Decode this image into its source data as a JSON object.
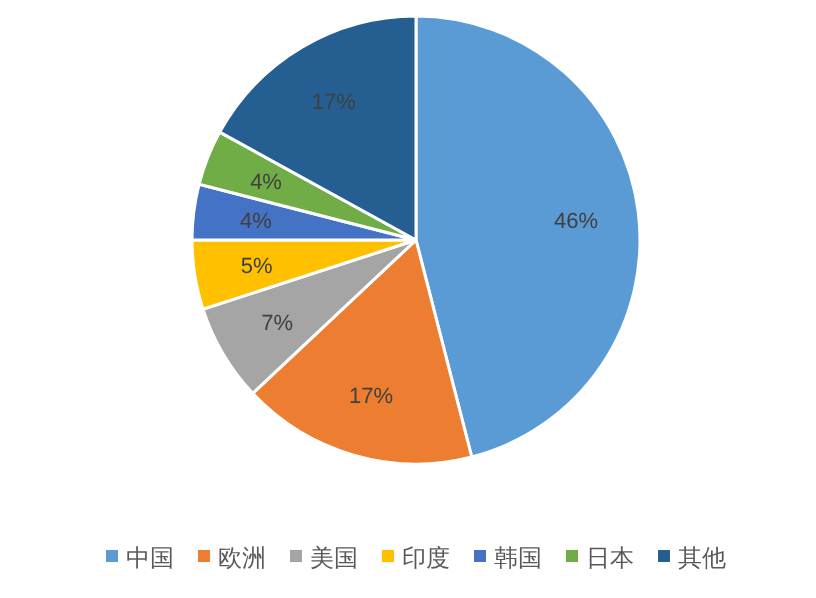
{
  "chart_data": {
    "type": "pie",
    "categories": [
      "中国",
      "欧洲",
      "美国",
      "印度",
      "韩国",
      "日本",
      "其他"
    ],
    "values": [
      46,
      17,
      7,
      5,
      4,
      4,
      17
    ],
    "colors": [
      "#5b9bd5",
      "#ed7d31",
      "#a5a5a5",
      "#ffc000",
      "#4472c4",
      "#70ad47",
      "#255e91"
    ],
    "value_labels": [
      "46%",
      "17%",
      "7%",
      "5%",
      "4%",
      "4%",
      "17%"
    ],
    "legend": "bottom"
  }
}
